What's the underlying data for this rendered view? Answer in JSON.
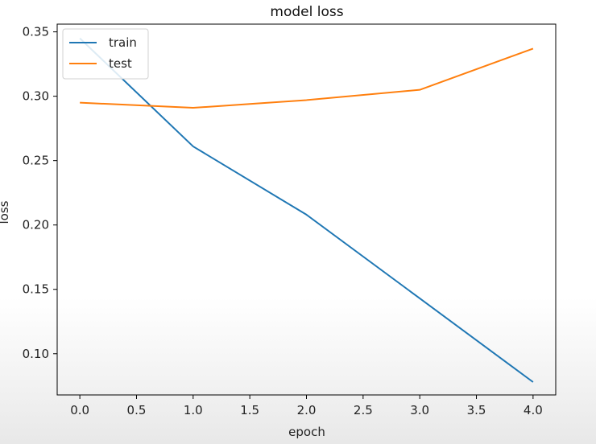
{
  "chart_data": {
    "type": "line",
    "title": "model loss",
    "xlabel": "epoch",
    "ylabel": "loss",
    "x": [
      0,
      1,
      2,
      3,
      4
    ],
    "xlim": [
      -0.2,
      4.2
    ],
    "ylim": [
      0.068,
      0.356
    ],
    "xticks": [
      0.0,
      0.5,
      1.0,
      1.5,
      2.0,
      2.5,
      3.0,
      3.5,
      4.0
    ],
    "xtick_labels": [
      "0.0",
      "0.5",
      "1.0",
      "1.5",
      "2.0",
      "2.5",
      "3.0",
      "3.5",
      "4.0"
    ],
    "yticks": [
      0.1,
      0.15,
      0.2,
      0.25,
      0.3,
      0.35
    ],
    "ytick_labels": [
      "0.10",
      "0.15",
      "0.20",
      "0.25",
      "0.30",
      "0.35"
    ],
    "grid": false,
    "legend_position": "top-left",
    "series": [
      {
        "name": "train",
        "color": "#1f77b4",
        "values": [
          0.345,
          0.261,
          0.208,
          0.143,
          0.078
        ]
      },
      {
        "name": "test",
        "color": "#ff7f0e",
        "values": [
          0.295,
          0.291,
          0.297,
          0.305,
          0.337
        ]
      }
    ]
  }
}
